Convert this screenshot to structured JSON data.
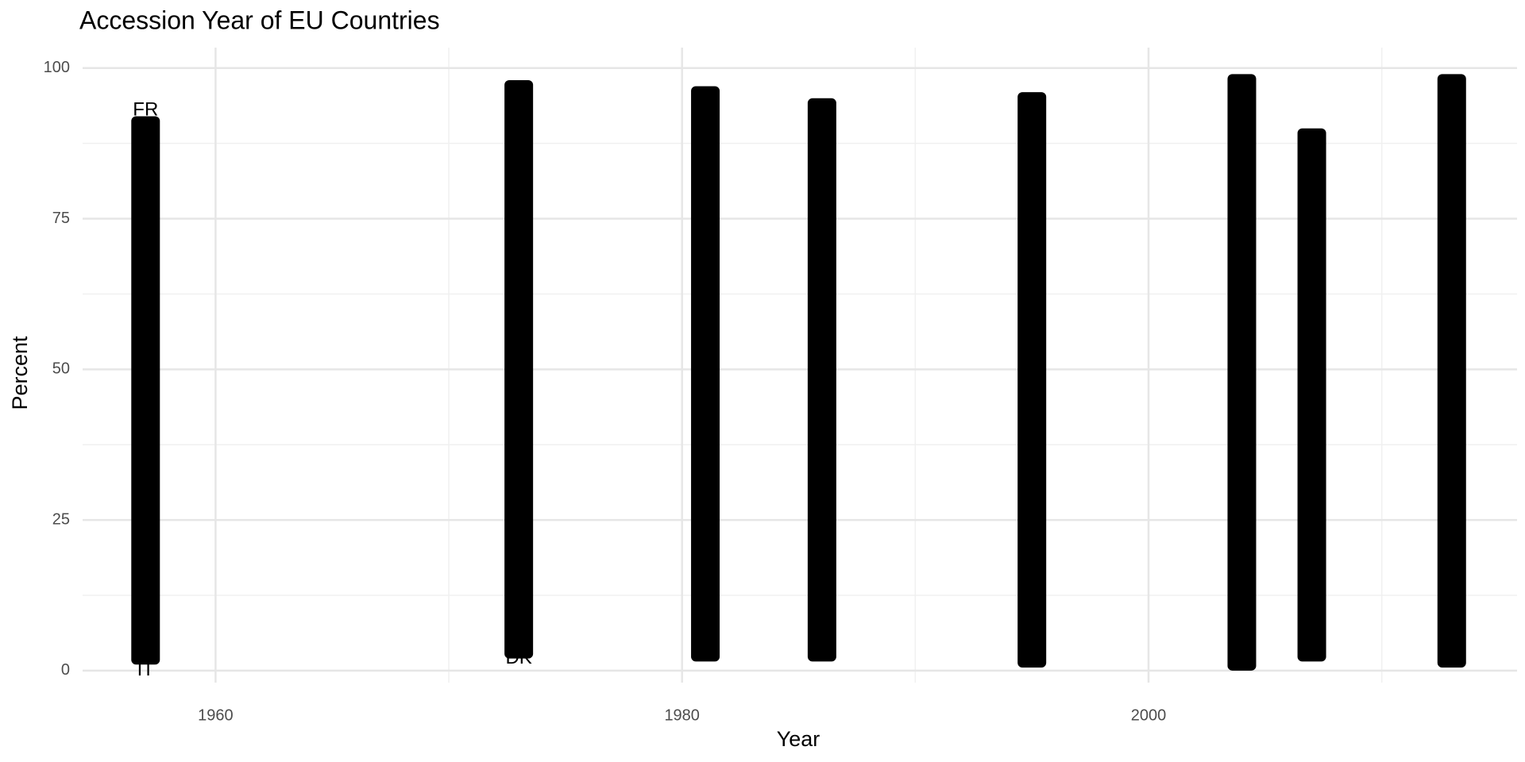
{
  "chart_data": {
    "type": "range",
    "title": "Accession Year of EU Countries",
    "x_label": "Year",
    "y_label": "Percent",
    "x": [
      1957,
      1973,
      1981,
      1986,
      1995,
      2004,
      2007,
      2013
    ],
    "low": [
      1,
      2,
      1.5,
      1.5,
      0.5,
      0,
      1.5,
      0.5
    ],
    "high": [
      92,
      98,
      97,
      95,
      96,
      99,
      90,
      99
    ],
    "color": "#000000",
    "annotations": [
      {
        "text": "FR",
        "x": 1957,
        "y": 93
      },
      {
        "text": "IT",
        "x": 1957,
        "y": 0
      },
      {
        "text": "DK",
        "x": 1973,
        "y": 2
      }
    ],
    "xlim": [
      1954.3,
      2015.8
    ],
    "xticks": [
      1960,
      1980,
      2000
    ],
    "xticks_minor": [
      1970,
      1990,
      2010
    ],
    "ylim": [
      -2,
      103.4
    ],
    "yticks": [
      0,
      25,
      50,
      75,
      100
    ],
    "yticks_minor": [
      12.5,
      37.5,
      62.5,
      87.5
    ],
    "grid": true
  }
}
